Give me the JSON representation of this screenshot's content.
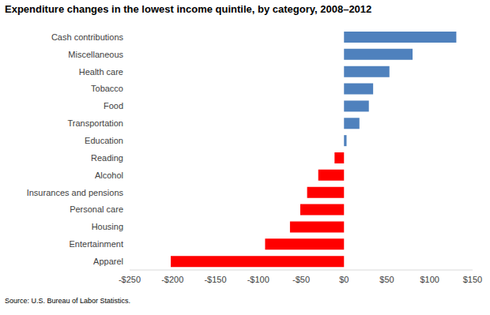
{
  "chart_data": {
    "type": "bar",
    "orientation": "horizontal",
    "title": "Expenditure changes in the lowest income quintile, by category, 2008–2012",
    "annotations": [
      "Source: U.S. Bureau of Labor Statistics."
    ],
    "categories": [
      "Cash contributions",
      "Miscellaneous",
      "Health care",
      "Tobacco",
      "Food",
      "Transportation",
      "Education",
      "Reading",
      "Alcohol",
      "Insurances and pensions",
      "Personal care",
      "Housing",
      "Entertainment",
      "Apparel"
    ],
    "values": [
      131,
      80,
      53,
      34,
      29,
      18,
      3,
      -11,
      -30,
      -43,
      -51,
      -63,
      -92,
      -202
    ],
    "colors": [
      "#4f81bd",
      "#4f81bd",
      "#4f81bd",
      "#4f81bd",
      "#4f81bd",
      "#4f81bd",
      "#4f81bd",
      "#ff0000",
      "#ff0000",
      "#ff0000",
      "#ff0000",
      "#ff0000",
      "#ff0000",
      "#ff0000"
    ],
    "xlim": [
      -250,
      150
    ],
    "xticks": [
      {
        "value": -250,
        "label": "-$250"
      },
      {
        "value": -200,
        "label": "-$200"
      },
      {
        "value": -150,
        "label": "-$150"
      },
      {
        "value": -100,
        "label": "-$100"
      },
      {
        "value": -50,
        "label": "-$50"
      },
      {
        "value": 0,
        "label": "$0"
      },
      {
        "value": 50,
        "label": "$50"
      },
      {
        "value": 100,
        "label": "$100"
      },
      {
        "value": 150,
        "label": "$150"
      }
    ],
    "grid": false
  }
}
